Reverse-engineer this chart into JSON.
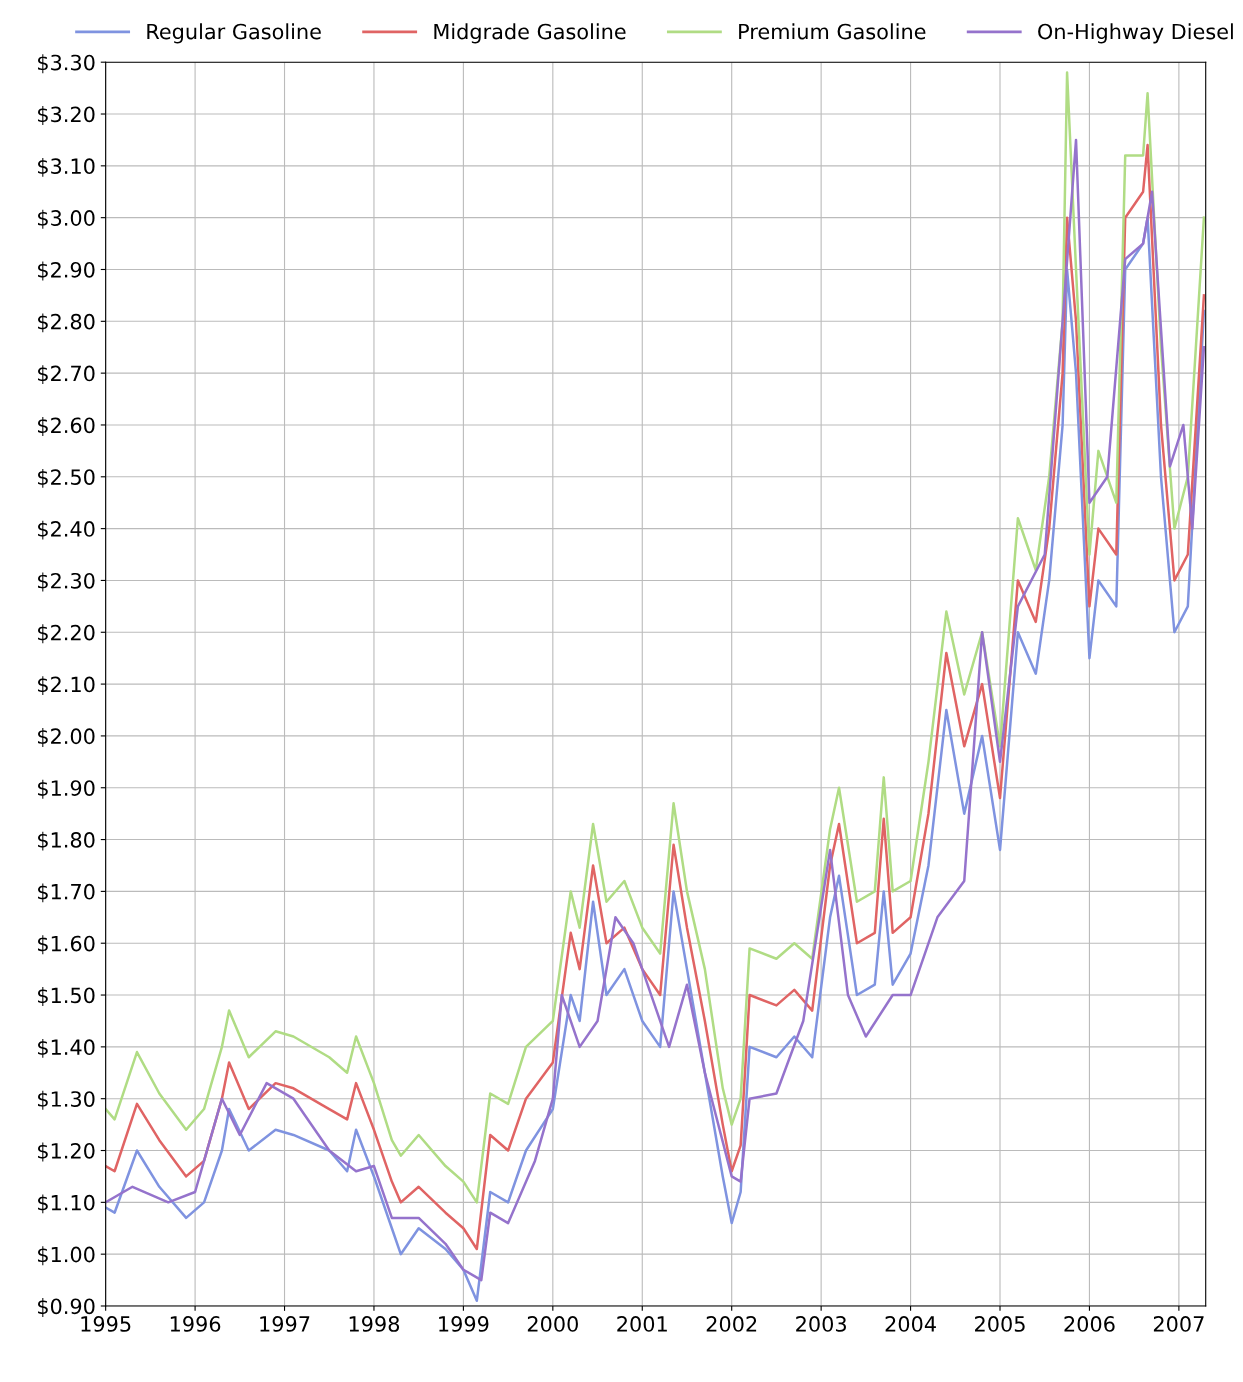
{
  "chart_data": {
    "type": "line",
    "xlim": [
      1995,
      2007.3
    ],
    "ylim": [
      0.9,
      3.3
    ],
    "xticks": [
      1995,
      1996,
      1997,
      1998,
      1999,
      2000,
      2001,
      2002,
      2003,
      2004,
      2005,
      2006,
      2007
    ],
    "yticks": [
      {
        "value": 0.9,
        "label": "$0.90"
      },
      {
        "value": 1.0,
        "label": "$1.00"
      },
      {
        "value": 1.1,
        "label": "$1.10"
      },
      {
        "value": 1.2,
        "label": "$1.20"
      },
      {
        "value": 1.3,
        "label": "$1.30"
      },
      {
        "value": 1.4,
        "label": "$1.40"
      },
      {
        "value": 1.5,
        "label": "$1.50"
      },
      {
        "value": 1.6,
        "label": "$1.60"
      },
      {
        "value": 1.7,
        "label": "$1.70"
      },
      {
        "value": 1.8,
        "label": "$1.80"
      },
      {
        "value": 1.9,
        "label": "$1.90"
      },
      {
        "value": 2.0,
        "label": "$2.00"
      },
      {
        "value": 2.1,
        "label": "$2.10"
      },
      {
        "value": 2.2,
        "label": "$2.20"
      },
      {
        "value": 2.3,
        "label": "$2.30"
      },
      {
        "value": 2.4,
        "label": "$2.40"
      },
      {
        "value": 2.5,
        "label": "$2.50"
      },
      {
        "value": 2.6,
        "label": "$2.60"
      },
      {
        "value": 2.7,
        "label": "$2.70"
      },
      {
        "value": 2.8,
        "label": "$2.80"
      },
      {
        "value": 2.9,
        "label": "$2.90"
      },
      {
        "value": 3.0,
        "label": "$3.00"
      },
      {
        "value": 3.1,
        "label": "$3.10"
      },
      {
        "value": 3.2,
        "label": "$3.20"
      },
      {
        "value": 3.3,
        "label": "$3.30"
      }
    ],
    "grid": true,
    "legend": "top",
    "marker": "none",
    "line_style": "solid",
    "series": [
      {
        "name": "Regular Gasoline",
        "color": "#7f93e0",
        "x": [
          1995.0,
          1995.1,
          1995.35,
          1995.6,
          1995.9,
          1996.1,
          1996.3,
          1996.38,
          1996.6,
          1996.9,
          1997.1,
          1997.5,
          1997.7,
          1997.8,
          1998.0,
          1998.2,
          1998.3,
          1998.5,
          1998.8,
          1999.0,
          1999.15,
          1999.3,
          1999.5,
          1999.7,
          2000.0,
          2000.2,
          2000.3,
          2000.45,
          2000.6,
          2000.8,
          2001.0,
          2001.2,
          2001.35,
          2001.5,
          2001.7,
          2001.9,
          2002.0,
          2002.1,
          2002.2,
          2002.5,
          2002.7,
          2002.9,
          2003.1,
          2003.2,
          2003.4,
          2003.6,
          2003.7,
          2003.8,
          2004.0,
          2004.2,
          2004.4,
          2004.6,
          2004.8,
          2005.0,
          2005.2,
          2005.4,
          2005.55,
          2005.7,
          2005.75,
          2005.85,
          2006.0,
          2006.1,
          2006.3,
          2006.4,
          2006.6,
          2006.65,
          2006.8,
          2006.95,
          2007.1,
          2007.28
        ],
        "values": [
          1.09,
          1.08,
          1.2,
          1.13,
          1.07,
          1.1,
          1.2,
          1.28,
          1.2,
          1.24,
          1.23,
          1.2,
          1.16,
          1.24,
          1.15,
          1.05,
          1.0,
          1.05,
          1.01,
          0.97,
          0.91,
          1.12,
          1.1,
          1.2,
          1.28,
          1.5,
          1.45,
          1.68,
          1.5,
          1.55,
          1.45,
          1.4,
          1.7,
          1.55,
          1.35,
          1.15,
          1.06,
          1.12,
          1.4,
          1.38,
          1.42,
          1.38,
          1.65,
          1.73,
          1.5,
          1.52,
          1.7,
          1.52,
          1.58,
          1.75,
          2.05,
          1.85,
          2.0,
          1.78,
          2.2,
          2.12,
          2.3,
          2.6,
          2.9,
          2.7,
          2.15,
          2.3,
          2.25,
          2.9,
          2.95,
          3.0,
          2.5,
          2.2,
          2.25,
          2.82
        ]
      },
      {
        "name": "Midgrade Gasoline",
        "color": "#e06464",
        "x": [
          1995.0,
          1995.1,
          1995.35,
          1995.6,
          1995.9,
          1996.1,
          1996.3,
          1996.38,
          1996.6,
          1996.9,
          1997.1,
          1997.5,
          1997.7,
          1997.8,
          1998.0,
          1998.2,
          1998.3,
          1998.5,
          1998.8,
          1999.0,
          1999.15,
          1999.3,
          1999.5,
          1999.7,
          2000.0,
          2000.2,
          2000.3,
          2000.45,
          2000.6,
          2000.8,
          2001.0,
          2001.2,
          2001.35,
          2001.5,
          2001.7,
          2001.9,
          2002.0,
          2002.1,
          2002.2,
          2002.5,
          2002.7,
          2002.9,
          2003.1,
          2003.2,
          2003.4,
          2003.6,
          2003.7,
          2003.8,
          2004.0,
          2004.2,
          2004.4,
          2004.6,
          2004.8,
          2005.0,
          2005.2,
          2005.4,
          2005.55,
          2005.7,
          2005.75,
          2005.85,
          2006.0,
          2006.1,
          2006.3,
          2006.4,
          2006.6,
          2006.65,
          2006.8,
          2006.95,
          2007.1,
          2007.28
        ],
        "values": [
          1.17,
          1.16,
          1.29,
          1.22,
          1.15,
          1.18,
          1.3,
          1.37,
          1.28,
          1.33,
          1.32,
          1.28,
          1.26,
          1.33,
          1.24,
          1.14,
          1.1,
          1.13,
          1.08,
          1.05,
          1.01,
          1.23,
          1.2,
          1.3,
          1.37,
          1.62,
          1.55,
          1.75,
          1.6,
          1.63,
          1.55,
          1.5,
          1.79,
          1.63,
          1.45,
          1.25,
          1.16,
          1.21,
          1.5,
          1.48,
          1.51,
          1.47,
          1.75,
          1.83,
          1.6,
          1.62,
          1.84,
          1.62,
          1.65,
          1.85,
          2.16,
          1.98,
          2.1,
          1.88,
          2.3,
          2.22,
          2.4,
          2.7,
          3.0,
          2.8,
          2.25,
          2.4,
          2.35,
          3.0,
          3.05,
          3.14,
          2.6,
          2.3,
          2.35,
          2.85
        ]
      },
      {
        "name": "Premium Gasoline",
        "color": "#b0dc84",
        "x": [
          1995.0,
          1995.1,
          1995.35,
          1995.6,
          1995.9,
          1996.1,
          1996.3,
          1996.38,
          1996.6,
          1996.9,
          1997.1,
          1997.5,
          1997.7,
          1997.8,
          1998.0,
          1998.2,
          1998.3,
          1998.5,
          1998.8,
          1999.0,
          1999.15,
          1999.3,
          1999.5,
          1999.7,
          2000.0,
          2000.2,
          2000.3,
          2000.45,
          2000.6,
          2000.8,
          2001.0,
          2001.2,
          2001.35,
          2001.5,
          2001.7,
          2001.9,
          2002.0,
          2002.1,
          2002.2,
          2002.5,
          2002.7,
          2002.9,
          2003.1,
          2003.2,
          2003.4,
          2003.6,
          2003.7,
          2003.8,
          2004.0,
          2004.2,
          2004.4,
          2004.6,
          2004.8,
          2005.0,
          2005.2,
          2005.4,
          2005.55,
          2005.7,
          2005.75,
          2005.85,
          2006.0,
          2006.1,
          2006.3,
          2006.4,
          2006.6,
          2006.65,
          2006.8,
          2006.95,
          2007.1,
          2007.28
        ],
        "values": [
          1.28,
          1.26,
          1.39,
          1.31,
          1.24,
          1.28,
          1.4,
          1.47,
          1.38,
          1.43,
          1.42,
          1.38,
          1.35,
          1.42,
          1.33,
          1.22,
          1.19,
          1.23,
          1.17,
          1.14,
          1.1,
          1.31,
          1.29,
          1.4,
          1.45,
          1.7,
          1.63,
          1.83,
          1.68,
          1.72,
          1.63,
          1.58,
          1.87,
          1.7,
          1.55,
          1.32,
          1.25,
          1.3,
          1.59,
          1.57,
          1.6,
          1.57,
          1.82,
          1.9,
          1.68,
          1.7,
          1.92,
          1.7,
          1.72,
          1.95,
          2.24,
          2.08,
          2.2,
          1.98,
          2.42,
          2.32,
          2.5,
          2.8,
          3.28,
          2.9,
          2.35,
          2.55,
          2.45,
          3.12,
          3.12,
          3.24,
          2.75,
          2.4,
          2.5,
          3.0
        ]
      },
      {
        "name": "On-Highway Diesel",
        "color": "#9573cc",
        "x": [
          1995.0,
          1995.3,
          1995.7,
          1996.0,
          1996.3,
          1996.5,
          1996.8,
          1997.1,
          1997.5,
          1997.8,
          1998.0,
          1998.2,
          1998.5,
          1998.8,
          1999.0,
          1999.2,
          1999.3,
          1999.5,
          1999.8,
          2000.0,
          2000.1,
          2000.3,
          2000.5,
          2000.7,
          2000.9,
          2001.1,
          2001.3,
          2001.5,
          2001.7,
          2002.0,
          2002.1,
          2002.2,
          2002.5,
          2002.8,
          2003.1,
          2003.3,
          2003.5,
          2003.8,
          2004.0,
          2004.3,
          2004.6,
          2004.8,
          2005.0,
          2005.2,
          2005.5,
          2005.7,
          2005.85,
          2006.0,
          2006.2,
          2006.4,
          2006.6,
          2006.7,
          2006.9,
          2007.05,
          2007.15,
          2007.28
        ],
        "values": [
          1.1,
          1.13,
          1.1,
          1.12,
          1.3,
          1.23,
          1.33,
          1.3,
          1.2,
          1.16,
          1.17,
          1.07,
          1.07,
          1.02,
          0.97,
          0.95,
          1.08,
          1.06,
          1.18,
          1.3,
          1.5,
          1.4,
          1.45,
          1.65,
          1.6,
          1.5,
          1.4,
          1.52,
          1.35,
          1.15,
          1.14,
          1.3,
          1.31,
          1.45,
          1.78,
          1.5,
          1.42,
          1.5,
          1.5,
          1.65,
          1.72,
          2.2,
          1.95,
          2.25,
          2.35,
          2.8,
          3.15,
          2.45,
          2.5,
          2.92,
          2.95,
          3.05,
          2.52,
          2.6,
          2.4,
          2.75
        ]
      }
    ]
  }
}
